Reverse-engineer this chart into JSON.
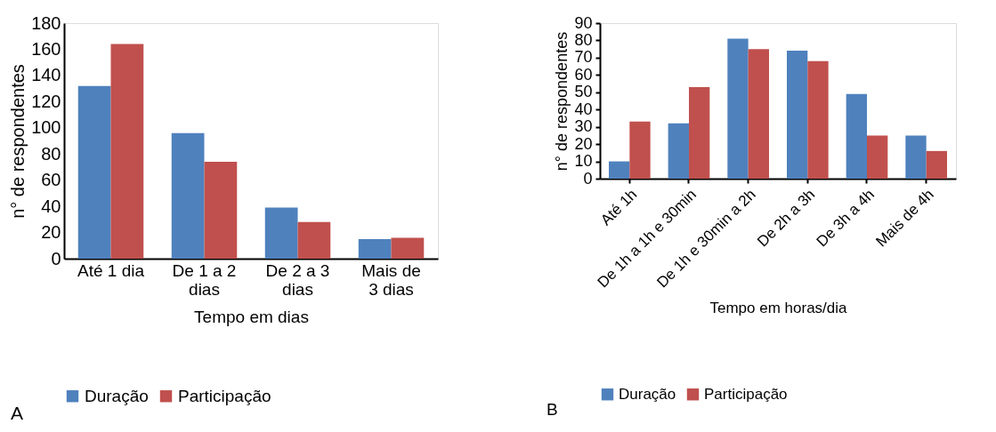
{
  "chart_data": [
    {
      "type": "bar",
      "xlabel": "Tempo em dias",
      "ylabel": "n° de respondentes",
      "categories": [
        "Até 1 dia",
        "De 1 a 2\ndias",
        "De 2 a 3\ndias",
        "Mais de\n3 dias"
      ],
      "series": [
        {
          "name": "Duração",
          "color": "#4f81bd",
          "values": [
            132,
            96,
            39,
            15
          ]
        },
        {
          "name": "Participação",
          "color": "#c0504d",
          "values": [
            164,
            74,
            28,
            16
          ]
        }
      ],
      "ylim": [
        0,
        180
      ],
      "yticks": [
        0,
        20,
        40,
        60,
        80,
        100,
        120,
        140,
        160,
        180
      ],
      "legend": "bottom",
      "grid": false,
      "annotations": [
        "A"
      ]
    },
    {
      "type": "bar",
      "xlabel": "Tempo em horas/dia",
      "ylabel": "n° de respondentes",
      "categories": [
        "Até 1h",
        "De 1h a 1h e 30min",
        "De 1h e 30min a 2h",
        "De 2h a 3h",
        "De 3h a 4h",
        "Mais de 4h"
      ],
      "series": [
        {
          "name": "Duração",
          "color": "#4f81bd",
          "values": [
            10,
            32,
            81,
            74,
            49,
            25
          ]
        },
        {
          "name": "Participação",
          "color": "#c0504d",
          "values": [
            33,
            53,
            75,
            68,
            25,
            16
          ]
        }
      ],
      "ylim": [
        0,
        90
      ],
      "yticks": [
        0,
        10,
        20,
        30,
        40,
        50,
        60,
        70,
        80,
        90
      ],
      "legend": "bottom",
      "grid": false,
      "annotations": [
        "B"
      ]
    }
  ]
}
